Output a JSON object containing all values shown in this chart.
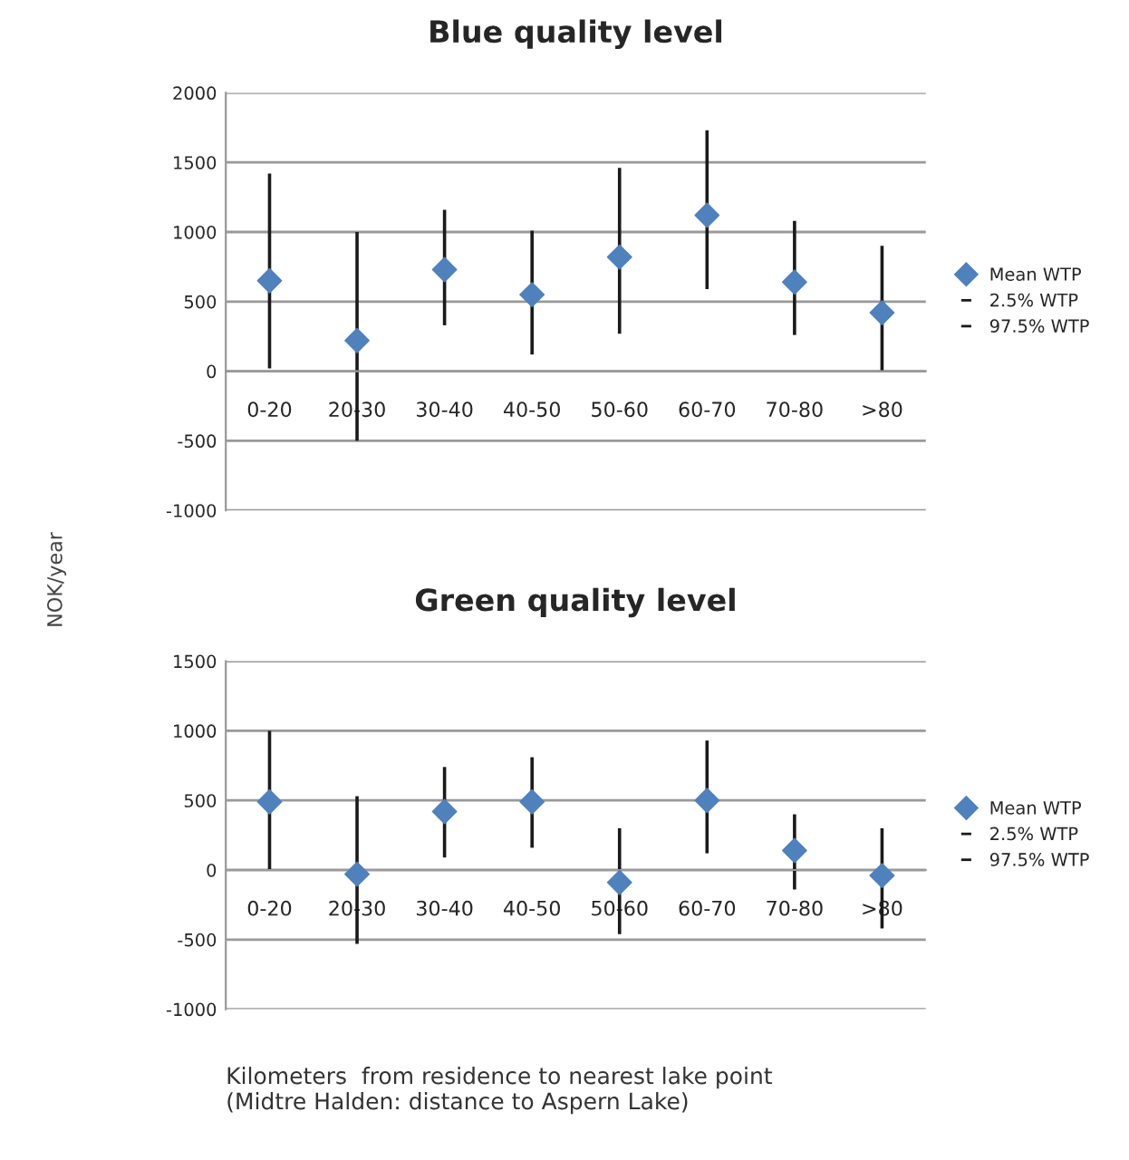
{
  "chart_data": [
    {
      "type": "scatter",
      "title": "Blue quality level",
      "ylabel": "NOK/year",
      "categories": [
        "0-20",
        "20-30",
        "30-40",
        "40-50",
        "50-60",
        "60-70",
        "70-80",
        ">80"
      ],
      "ylim": [
        -1000,
        2000
      ],
      "yticks": [
        -1000,
        -500,
        0,
        500,
        1000,
        1500,
        2000
      ],
      "grid": "y",
      "legend": "right",
      "marker": "diamond",
      "annotations": [
        "2.5% WTP",
        "97.5% WTP"
      ],
      "series": [
        {
          "name": "Mean WTP",
          "color": "#4f81bd",
          "values": [
            650,
            220,
            730,
            550,
            820,
            1120,
            640,
            420
          ],
          "errors": [
            [
              20,
              1420
            ],
            [
              -500,
              1000
            ],
            [
              330,
              1160
            ],
            [
              120,
              1010
            ],
            [
              270,
              1460
            ],
            [
              590,
              1730
            ],
            [
              260,
              1080
            ],
            [
              0,
              900
            ]
          ]
        }
      ]
    },
    {
      "type": "scatter",
      "title": "Green quality level",
      "xlabel": "Kilometers  from residence to nearest lake point\n(Midtre Halden: distance to Aspern Lake)",
      "categories": [
        "0-20",
        "20-30",
        "30-40",
        "40-50",
        "50-60",
        "60-70",
        "70-80",
        ">80"
      ],
      "ylim": [
        -1000,
        1500
      ],
      "yticks": [
        -1000,
        -500,
        0,
        500,
        1000,
        1500
      ],
      "grid": "y",
      "legend": "right",
      "marker": "diamond",
      "annotations": [
        "2.5% WTP",
        "97.5% WTP"
      ],
      "series": [
        {
          "name": "Mean WTP",
          "color": "#4f81bd",
          "values": [
            490,
            -30,
            420,
            490,
            -90,
            500,
            140,
            -40
          ],
          "errors": [
            [
              0,
              1000
            ],
            [
              -530,
              530
            ],
            [
              90,
              740
            ],
            [
              160,
              810
            ],
            [
              -460,
              300
            ],
            [
              120,
              930
            ],
            [
              -140,
              400
            ],
            [
              -420,
              300
            ]
          ]
        }
      ]
    }
  ]
}
